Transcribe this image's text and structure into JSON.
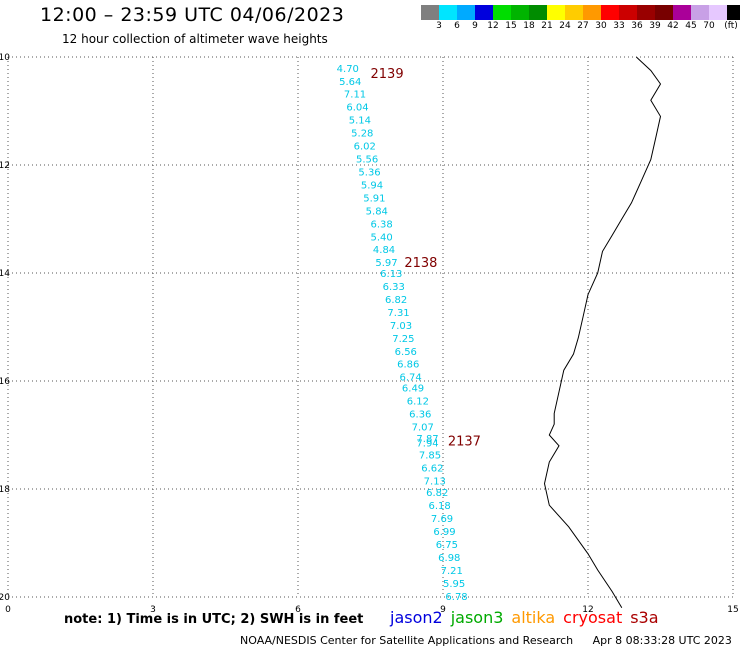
{
  "header": {
    "title": "12:00 – 23:59 UTC 04/06/2023",
    "subtitle": "12 hour collection of altimeter wave heights"
  },
  "colorbar": {
    "colors": [
      "#7f7f7f",
      "#00e5ff",
      "#00aaff",
      "#0000dd",
      "#00dd00",
      "#00b400",
      "#008c00",
      "#ffff00",
      "#ffcc00",
      "#ff9900",
      "#ff0000",
      "#cc0000",
      "#990000",
      "#780000",
      "#aa0099",
      "#c8a0e6",
      "#e6c8ff",
      "#000000"
    ],
    "labels": [
      "3",
      "6",
      "9",
      "12",
      "15",
      "18",
      "21",
      "24",
      "27",
      "30",
      "33",
      "36",
      "39",
      "42",
      "45",
      "70",
      "(ft)"
    ],
    "label_after_swatch": [
      1,
      2,
      3,
      4,
      5,
      6,
      7,
      8,
      9,
      10,
      11,
      12,
      13,
      14,
      15,
      16,
      17
    ]
  },
  "map": {
    "x_ticks": [
      0,
      3,
      6,
      9,
      12,
      15
    ],
    "y_ticks": [
      -10,
      -12,
      -14,
      -16,
      -18,
      -20
    ],
    "xlim": [
      0,
      15
    ],
    "ylim": [
      -20,
      -10
    ],
    "value_color": "#00c8e6",
    "coast_color": "#000000",
    "grid": true,
    "coastline": [
      [
        13.0,
        -10.0
      ],
      [
        13.3,
        -10.25
      ],
      [
        13.5,
        -10.5
      ],
      [
        13.3,
        -10.8
      ],
      [
        13.5,
        -11.1
      ],
      [
        13.4,
        -11.5
      ],
      [
        13.3,
        -11.9
      ],
      [
        13.1,
        -12.3
      ],
      [
        12.9,
        -12.7
      ],
      [
        12.7,
        -13.0
      ],
      [
        12.5,
        -13.3
      ],
      [
        12.3,
        -13.6
      ],
      [
        12.2,
        -14.0
      ],
      [
        12.0,
        -14.4
      ],
      [
        11.9,
        -14.8
      ],
      [
        11.8,
        -15.2
      ],
      [
        11.7,
        -15.5
      ],
      [
        11.5,
        -15.8
      ],
      [
        11.4,
        -16.2
      ],
      [
        11.3,
        -16.6
      ],
      [
        11.3,
        -16.8
      ],
      [
        11.2,
        -17.0
      ],
      [
        11.4,
        -17.2
      ],
      [
        11.2,
        -17.5
      ],
      [
        11.1,
        -17.9
      ],
      [
        11.2,
        -18.3
      ],
      [
        11.6,
        -18.7
      ],
      [
        12.0,
        -19.2
      ],
      [
        12.2,
        -19.5
      ],
      [
        12.5,
        -19.9
      ],
      [
        12.7,
        -20.2
      ]
    ]
  },
  "passes": [
    {
      "label": "2139",
      "color": "#800000",
      "lon": 7.5,
      "lat": -10.3
    },
    {
      "label": "2138",
      "color": "#800000",
      "lon": 8.2,
      "lat": -13.8
    },
    {
      "label": "2137",
      "color": "#800000",
      "lon": 9.1,
      "lat": -17.1
    }
  ],
  "wave_heights": [
    {
      "v": "4.70",
      "lon": 6.8,
      "lat": -10.2
    },
    {
      "v": "5.64",
      "lon": 6.85,
      "lat": -10.44
    },
    {
      "v": "7.11",
      "lon": 6.95,
      "lat": -10.68
    },
    {
      "v": "6.04",
      "lon": 7.0,
      "lat": -10.92
    },
    {
      "v": "5.14",
      "lon": 7.05,
      "lat": -11.16
    },
    {
      "v": "5.28",
      "lon": 7.1,
      "lat": -11.4
    },
    {
      "v": "6.02",
      "lon": 7.15,
      "lat": -11.64
    },
    {
      "v": "5.56",
      "lon": 7.2,
      "lat": -11.88
    },
    {
      "v": "5.36",
      "lon": 7.25,
      "lat": -12.12
    },
    {
      "v": "5.94",
      "lon": 7.3,
      "lat": -12.36
    },
    {
      "v": "5.91",
      "lon": 7.35,
      "lat": -12.6
    },
    {
      "v": "5.84",
      "lon": 7.4,
      "lat": -12.84
    },
    {
      "v": "6.38",
      "lon": 7.5,
      "lat": -13.08
    },
    {
      "v": "5.40",
      "lon": 7.5,
      "lat": -13.32
    },
    {
      "v": "4.84",
      "lon": 7.55,
      "lat": -13.56
    },
    {
      "v": "5.97",
      "lon": 7.6,
      "lat": -13.8
    },
    {
      "v": "6.13",
      "lon": 7.7,
      "lat": -14.0
    },
    {
      "v": "6.33",
      "lon": 7.75,
      "lat": -14.24
    },
    {
      "v": "6.82",
      "lon": 7.8,
      "lat": -14.48
    },
    {
      "v": "7.31",
      "lon": 7.85,
      "lat": -14.72
    },
    {
      "v": "7.03",
      "lon": 7.9,
      "lat": -14.96
    },
    {
      "v": "7.25",
      "lon": 7.95,
      "lat": -15.2
    },
    {
      "v": "6.56",
      "lon": 8.0,
      "lat": -15.44
    },
    {
      "v": "6.86",
      "lon": 8.05,
      "lat": -15.68
    },
    {
      "v": "6.74",
      "lon": 8.1,
      "lat": -15.92
    },
    {
      "v": "6.49",
      "lon": 8.15,
      "lat": -16.12
    },
    {
      "v": "6.12",
      "lon": 8.25,
      "lat": -16.36
    },
    {
      "v": "6.36",
      "lon": 8.3,
      "lat": -16.6
    },
    {
      "v": "7.07",
      "lon": 8.35,
      "lat": -16.84
    },
    {
      "v": "7.87",
      "lon": 8.45,
      "lat": -17.06
    },
    {
      "v": "7.94",
      "lon": 8.45,
      "lat": -17.14
    },
    {
      "v": "7.85",
      "lon": 8.5,
      "lat": -17.36
    },
    {
      "v": "6.62",
      "lon": 8.55,
      "lat": -17.6
    },
    {
      "v": "7.13",
      "lon": 8.6,
      "lat": -17.84
    },
    {
      "v": "6.82",
      "lon": 8.65,
      "lat": -18.06
    },
    {
      "v": "6.18",
      "lon": 8.7,
      "lat": -18.3
    },
    {
      "v": "7.69",
      "lon": 8.75,
      "lat": -18.54
    },
    {
      "v": "6.99",
      "lon": 8.8,
      "lat": -18.78
    },
    {
      "v": "6.75",
      "lon": 8.85,
      "lat": -19.02
    },
    {
      "v": "6.98",
      "lon": 8.9,
      "lat": -19.26
    },
    {
      "v": "7.21",
      "lon": 8.95,
      "lat": -19.5
    },
    {
      "v": "5.95",
      "lon": 9.0,
      "lat": -19.74
    },
    {
      "v": "6.78",
      "lon": 9.05,
      "lat": -19.98
    }
  ],
  "footer": {
    "note": "note:  1) Time is in UTC;  2) SWH is in feet",
    "satellites": [
      {
        "name": "jason2",
        "color": "#0000dd"
      },
      {
        "name": "jason3",
        "color": "#00aa00"
      },
      {
        "name": "altika",
        "color": "#ff9900"
      },
      {
        "name": "cryosat",
        "color": "#ff0000"
      },
      {
        "name": "s3a",
        "color": "#aa0000"
      }
    ],
    "credit": "NOAA/NESDIS Center for Satellite Applications and Research",
    "generated": "Apr  8 08:33:28 UTC 2023"
  }
}
